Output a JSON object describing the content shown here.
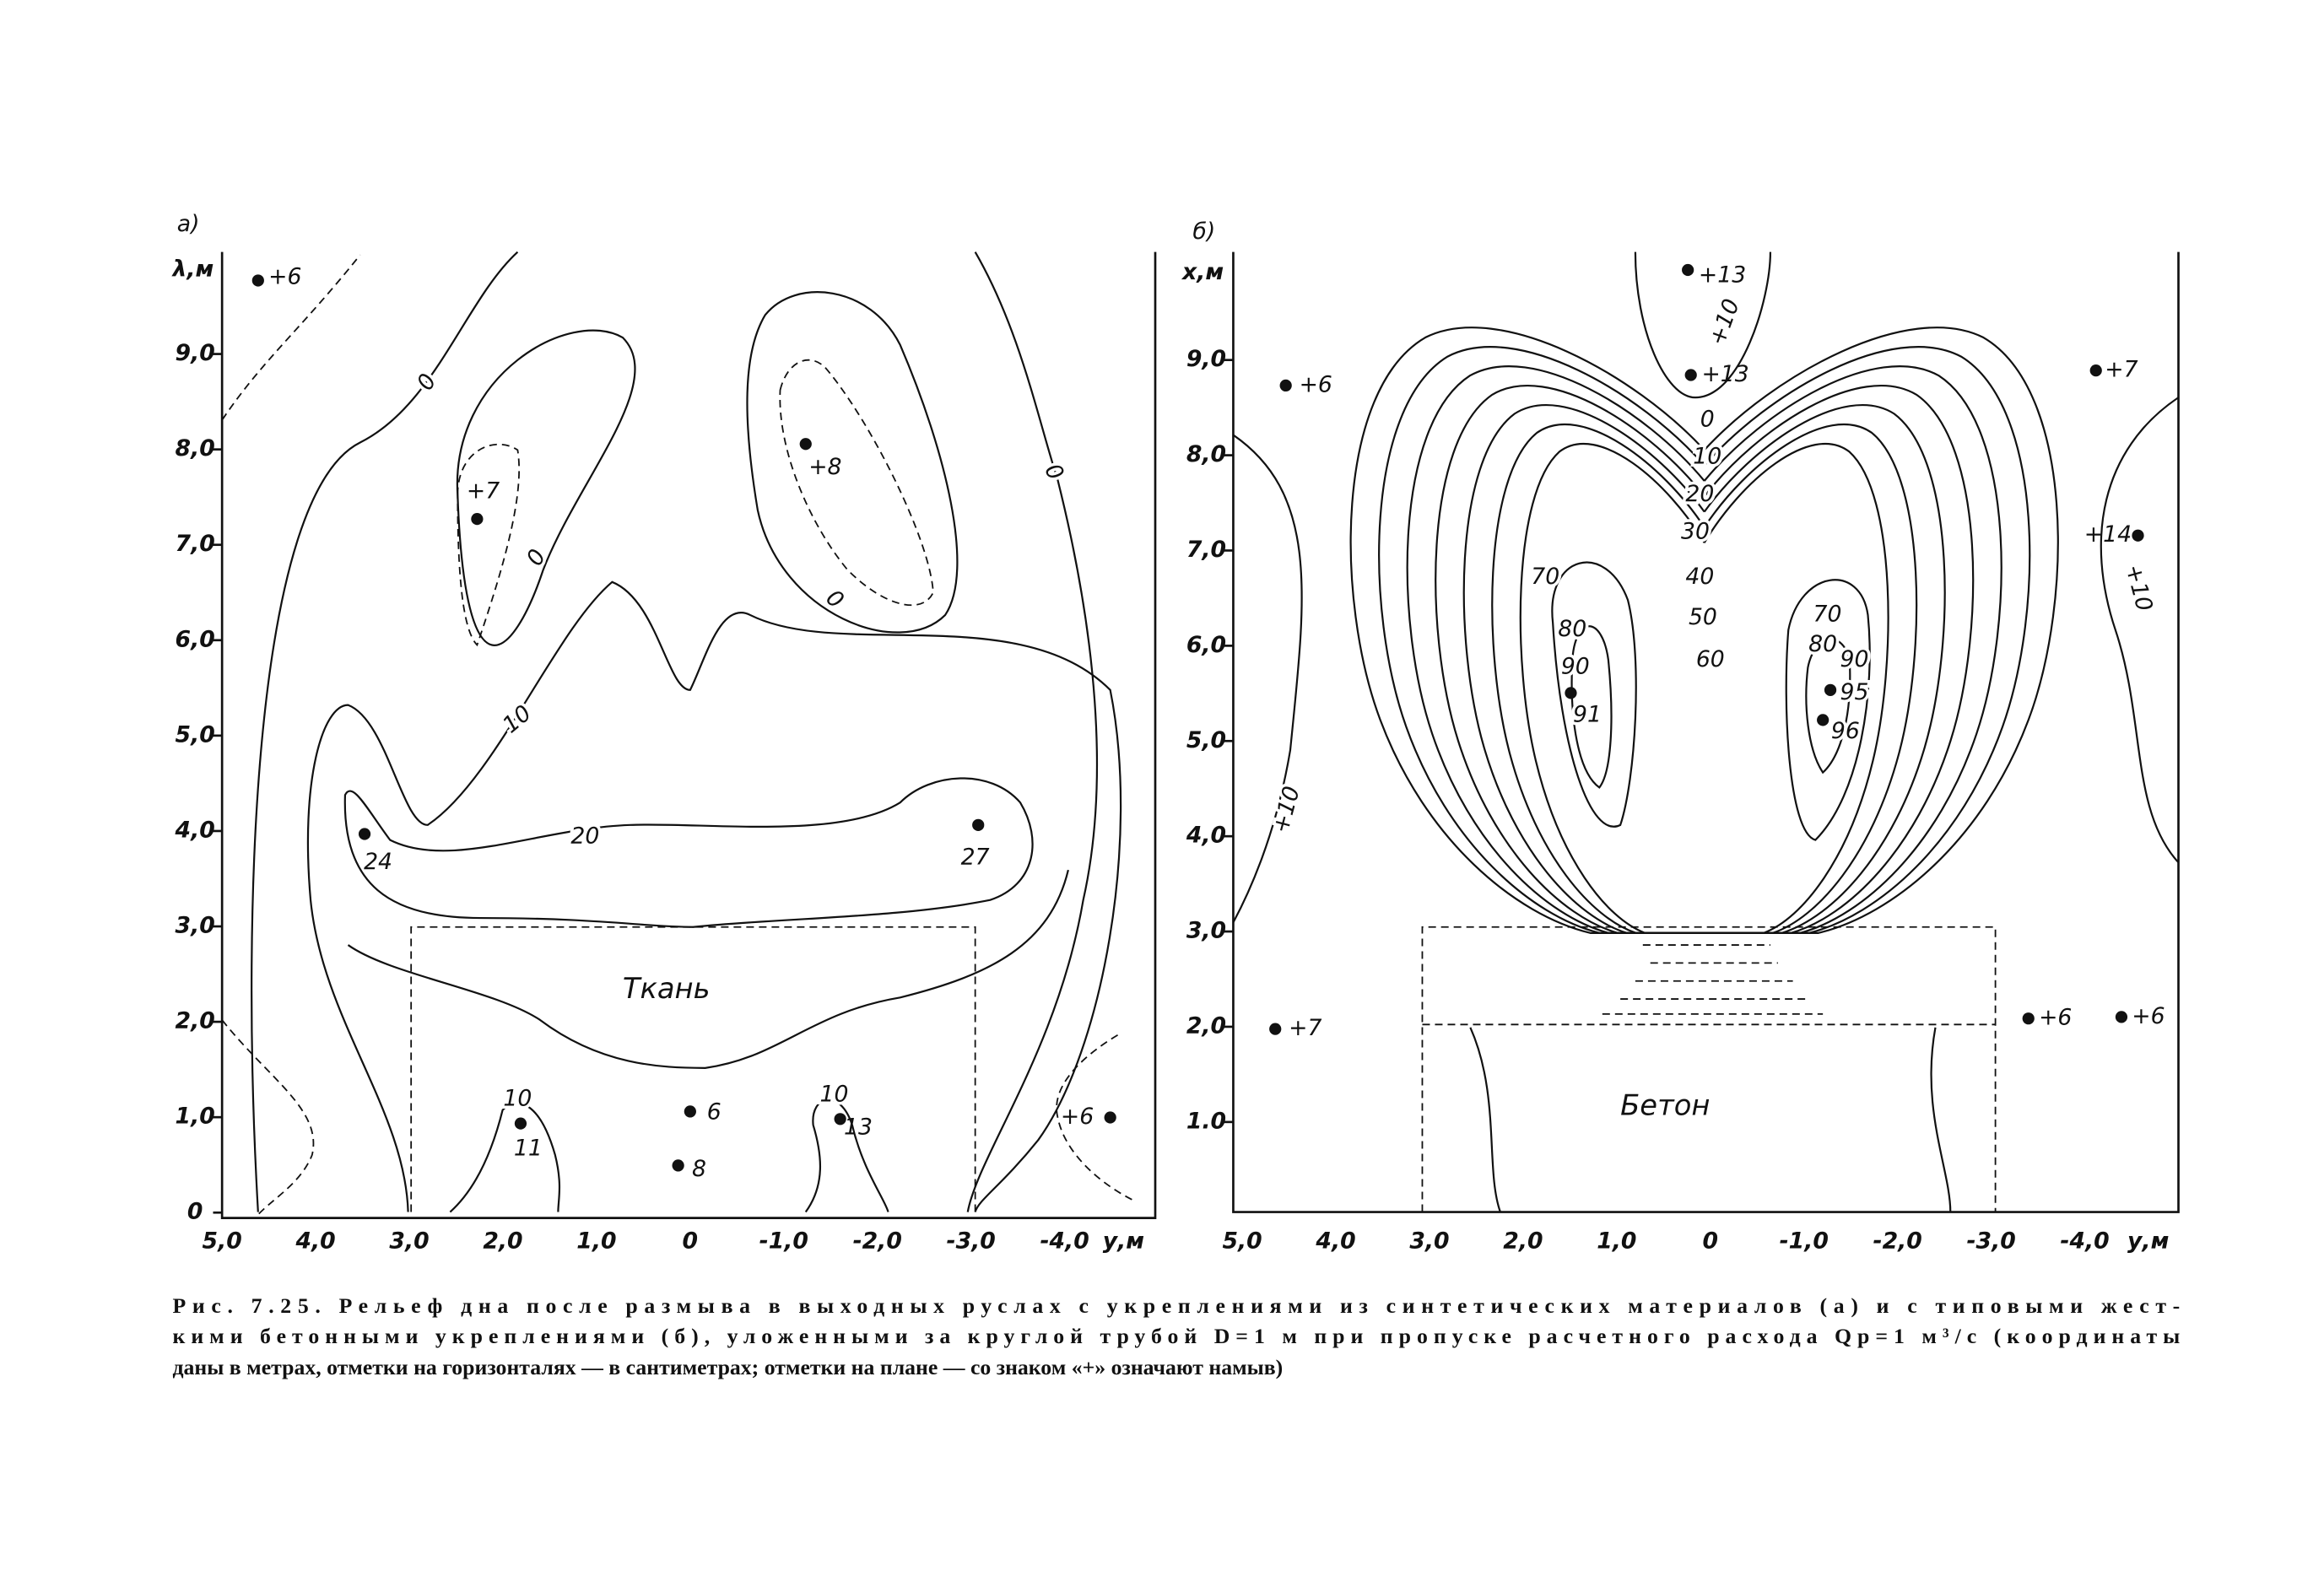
{
  "panel_a": {
    "label": "а)",
    "y_axis_label": "λ,м",
    "x_axis_label": "у,м",
    "yticks": [
      "9,0",
      "8,0",
      "7,0",
      "6,0",
      "5,0",
      "4,0",
      "3,0",
      "2,0",
      "1,0",
      "0"
    ],
    "xticks": [
      "5,0",
      "4,0",
      "3,0",
      "2,0",
      "1,0",
      "0",
      "-1,0",
      "-2,0",
      "-3,0",
      "-4,0"
    ],
    "contour_labels": [
      "0",
      "0",
      "0",
      "0",
      "10",
      "20",
      "10",
      "10"
    ],
    "point_labels": [
      "+6",
      "+7",
      "+8",
      "24",
      "27",
      "6",
      "11",
      "8",
      "13",
      "+6"
    ],
    "region_label": "Ткань"
  },
  "panel_b": {
    "label": "б)",
    "y_axis_label": "x,м",
    "x_axis_label": "у,м",
    "yticks": [
      "9,0",
      "8,0",
      "7,0",
      "6,0",
      "5,0",
      "4,0",
      "3,0",
      "2,0",
      "1.0"
    ],
    "xticks": [
      "5,0",
      "4,0",
      "3,0",
      "2,0",
      "1,0",
      "0",
      "-1,0",
      "-2,0",
      "-3,0",
      "-4,0"
    ],
    "contour_labels": [
      "+10",
      "0",
      "10",
      "20",
      "30",
      "40",
      "50",
      "60",
      "70",
      "80",
      "90",
      "91",
      "70",
      "80",
      "90",
      "95",
      "96",
      "+10",
      "+10"
    ],
    "point_labels": [
      "+13",
      "+13",
      "+6",
      "+7",
      "+14",
      "+7",
      "+6",
      "+6"
    ],
    "region_label": "Бетон"
  },
  "caption": {
    "lines": [
      "Рис. 7.25. Рельеф дна после размыва в выходных руслах с укреплениями из синтетических материалов (а) и с типовыми жест-",
      "кими бетонными укреплениями (б), уложенными за круглой трубой D=1 м при пропуске расчетного расхода Qр=1 м³/с (координаты",
      "даны в метрах, отметки на горизонталях — в сантиметрах; отметки на плане — со знаком «+» означают намыв)"
    ]
  }
}
